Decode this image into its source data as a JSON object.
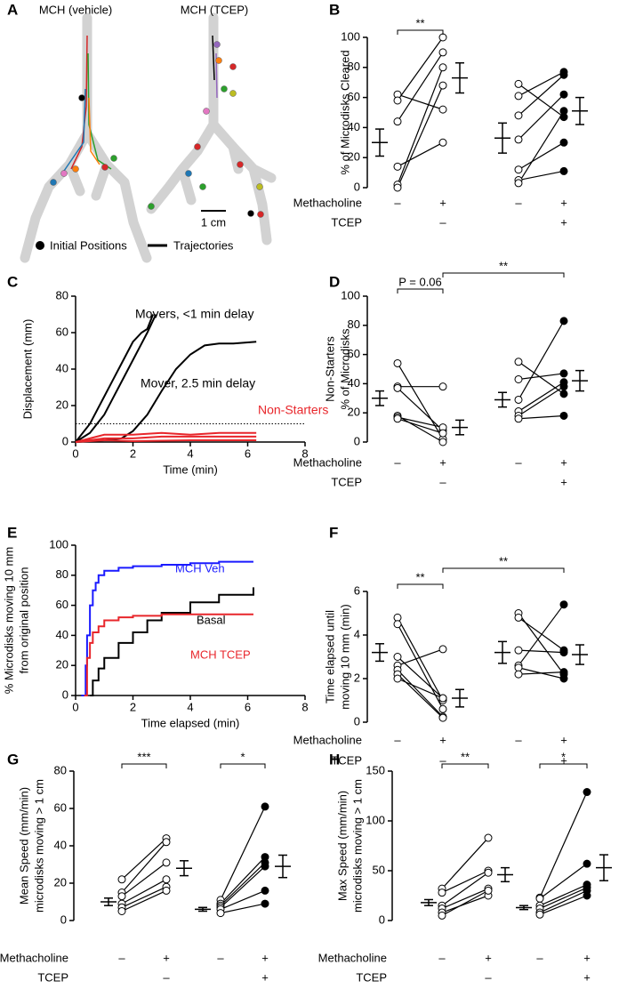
{
  "chart_data": [
    {
      "type": "diagram",
      "panel": "A",
      "titles": [
        "MCH (vehicle)",
        "MCH (TCEP)"
      ],
      "scale_label": "1 cm",
      "legend": [
        "Initial Positions",
        "Trajectories"
      ]
    },
    {
      "type": "paired",
      "panel": "B",
      "ylabel": [
        "% of Microdisks Cleared"
      ],
      "ylim": [
        0,
        100
      ],
      "yticks": [
        0,
        20,
        40,
        60,
        80,
        100
      ],
      "pairs": [
        {
          "before": [
            62,
            58,
            44,
            14,
            2,
            0
          ],
          "after": [
            52,
            100,
            90,
            30,
            80,
            68
          ],
          "before_fill": "white",
          "after_fill": "white"
        },
        {
          "before": [
            69,
            61,
            48,
            32,
            12,
            5,
            3
          ],
          "after": [
            47,
            77,
            75,
            62,
            30,
            11,
            51
          ],
          "before_fill": "white",
          "after_fill": "black"
        }
      ],
      "means": [
        {
          "mean": 30,
          "sem": 9
        },
        {
          "mean": 73,
          "sem": 10
        },
        {
          "mean": 33,
          "sem": 10
        },
        {
          "mean": 51,
          "sem": 9
        }
      ],
      "rows": [
        {
          "label": "Methacholine",
          "marks": [
            "–",
            "+",
            "–",
            "+"
          ]
        },
        {
          "label": "TCEP",
          "marks": [
            null,
            "–",
            null,
            "+"
          ]
        }
      ],
      "brackets": [
        {
          "from": 0,
          "to": 1,
          "label": "**"
        }
      ]
    },
    {
      "type": "line",
      "panel": "C",
      "xlabel": "Time (min)",
      "ylabel": "Displacement (mm)",
      "xlim": [
        0,
        8
      ],
      "xticks": [
        0,
        2,
        4,
        6,
        8
      ],
      "ylim": [
        0,
        80
      ],
      "yticks": [
        0,
        20,
        40,
        60,
        80
      ],
      "threshold": 10,
      "series": [
        {
          "color": "#000000",
          "x": [
            0,
            0.5,
            1,
            1.5,
            2,
            2.3,
            2.5,
            2.7
          ],
          "values": [
            0,
            10,
            25,
            40,
            55,
            60,
            62,
            70
          ]
        },
        {
          "color": "#000000",
          "x": [
            0,
            0.5,
            1,
            1.5,
            2,
            2.5,
            2.8
          ],
          "values": [
            0,
            5,
            15,
            30,
            45,
            60,
            70
          ]
        },
        {
          "color": "#000000",
          "x": [
            0,
            1,
            1.6,
            2,
            2.5,
            3,
            3.5,
            4,
            4.5,
            5,
            5.5,
            6.3
          ],
          "values": [
            0,
            1,
            2,
            6,
            15,
            28,
            40,
            48,
            53,
            54,
            54,
            55
          ]
        },
        {
          "color": "#e8262b",
          "x": [
            0,
            0.5,
            1,
            2,
            3,
            4,
            5,
            6.3
          ],
          "values": [
            0,
            2,
            4,
            4,
            5,
            4,
            5,
            5
          ]
        },
        {
          "color": "#e8262b",
          "x": [
            0,
            1,
            2,
            3,
            4,
            5,
            6.3
          ],
          "values": [
            0,
            2,
            2,
            3,
            3,
            3,
            3
          ]
        },
        {
          "color": "#e8262b",
          "x": [
            0,
            1,
            2,
            4,
            6.3
          ],
          "values": [
            0,
            1,
            0.5,
            1,
            1
          ]
        }
      ],
      "annotations": [
        {
          "text": "Movers, <1 min delay",
          "color": "#000000"
        },
        {
          "text": "Mover, 2.5 min delay",
          "color": "#000000"
        },
        {
          "text": "Non-Starters",
          "color": "#e8262b"
        }
      ]
    },
    {
      "type": "paired",
      "panel": "D",
      "ylabel": [
        "Non-Starters",
        "% of Microdisks"
      ],
      "ylim": [
        0,
        100
      ],
      "yticks": [
        0,
        20,
        40,
        60,
        80,
        100
      ],
      "pairs": [
        {
          "before": [
            54,
            38,
            37,
            18,
            17,
            16
          ],
          "after": [
            2,
            38,
            8,
            0,
            10,
            6
          ],
          "before_fill": "white",
          "after_fill": "white"
        },
        {
          "before": [
            55,
            43,
            29,
            21,
            18,
            16
          ],
          "after": [
            33,
            47,
            83,
            41,
            38,
            18
          ],
          "before_fill": "white",
          "after_fill": "black"
        }
      ],
      "means": [
        {
          "mean": 30,
          "sem": 5
        },
        {
          "mean": 10,
          "sem": 5
        },
        {
          "mean": 29,
          "sem": 5
        },
        {
          "mean": 42,
          "sem": 7
        }
      ],
      "rows": [
        {
          "label": "Methacholine",
          "marks": [
            "–",
            "+",
            "–",
            "+"
          ]
        },
        {
          "label": "TCEP",
          "marks": [
            null,
            "–",
            null,
            "+"
          ]
        }
      ],
      "brackets": [
        {
          "from": 0,
          "to": 1,
          "label": "P = 0.06"
        },
        {
          "from": 1,
          "to": 3,
          "label": "**"
        }
      ]
    },
    {
      "type": "step",
      "panel": "E",
      "xlabel": "Time elapsed (min)",
      "ylabel": [
        "% Microdisks moving 10 mm",
        "from original position"
      ],
      "xlim": [
        0,
        8
      ],
      "xticks": [
        0,
        2,
        4,
        6,
        8
      ],
      "ylim": [
        0,
        100
      ],
      "yticks": [
        0,
        20,
        40,
        60,
        80,
        100
      ],
      "series": [
        {
          "name": "MCH Veh",
          "color": "#1a1aff",
          "x": [
            0.2,
            0.35,
            0.4,
            0.5,
            0.6,
            0.7,
            0.8,
            1,
            1.5,
            2,
            3,
            4,
            5,
            6.2
          ],
          "values": [
            0,
            20,
            40,
            60,
            70,
            75,
            80,
            83,
            85,
            86,
            87,
            88,
            89,
            89
          ]
        },
        {
          "name": "Basal",
          "color": "#000000",
          "x": [
            0.5,
            0.6,
            0.8,
            1,
            1.5,
            2,
            2.5,
            3,
            4,
            5,
            6.2
          ],
          "values": [
            0,
            10,
            18,
            25,
            35,
            42,
            50,
            55,
            62,
            67,
            72
          ]
        },
        {
          "name": "MCH TCEP",
          "color": "#e8262b",
          "x": [
            0.3,
            0.4,
            0.5,
            0.6,
            0.8,
            1,
            1.5,
            2,
            3,
            6.2
          ],
          "values": [
            0,
            25,
            35,
            42,
            46,
            50,
            52,
            53,
            54,
            54
          ]
        }
      ]
    },
    {
      "type": "paired",
      "panel": "F",
      "ylabel": [
        "Time elapsed until",
        "moving 10 mm (min)"
      ],
      "ylim": [
        0,
        6
      ],
      "yticks": [
        0,
        2,
        4,
        6
      ],
      "pairs": [
        {
          "before": [
            4.8,
            4.5,
            3.0,
            2.6,
            2.4,
            2.2,
            2.0
          ],
          "after": [
            1.0,
            0.6,
            1.1,
            3.35,
            0.25,
            0.2,
            1.1
          ],
          "before_fill": "white",
          "after_fill": "white"
        },
        {
          "before": [
            5.0,
            4.8,
            3.3,
            2.6,
            2.5,
            2.2
          ],
          "after": [
            2.2,
            3.3,
            3.2,
            5.4,
            2.0,
            2.3
          ],
          "before_fill": "white",
          "after_fill": "black"
        }
      ],
      "means": [
        {
          "mean": 3.2,
          "sem": 0.4
        },
        {
          "mean": 1.1,
          "sem": 0.4
        },
        {
          "mean": 3.2,
          "sem": 0.5
        },
        {
          "mean": 3.1,
          "sem": 0.45
        }
      ],
      "rows": [
        {
          "label": "Methacholine",
          "marks": [
            "–",
            "+",
            "–",
            "+"
          ]
        },
        {
          "label": "TCEP",
          "marks": [
            null,
            "–",
            null,
            "+"
          ]
        }
      ],
      "brackets": [
        {
          "from": 0,
          "to": 1,
          "label": "**"
        },
        {
          "from": 1,
          "to": 3,
          "label": "**"
        }
      ]
    },
    {
      "type": "paired",
      "panel": "G",
      "ylabel": [
        "Mean Speed (mm/min)",
        "microdisks moving > 1 cm"
      ],
      "ylim": [
        0,
        80
      ],
      "yticks": [
        0,
        20,
        40,
        60,
        80
      ],
      "pairs": [
        {
          "before": [
            22,
            15,
            13,
            9,
            7,
            5
          ],
          "after": [
            44,
            42,
            31,
            22,
            18,
            16
          ],
          "before_fill": "white",
          "after_fill": "white"
        },
        {
          "before": [
            11,
            9,
            8,
            7,
            6,
            4
          ],
          "after": [
            61,
            34,
            31,
            29,
            16,
            9
          ],
          "before_fill": "white",
          "after_fill": "black"
        }
      ],
      "means": [
        {
          "mean": 10,
          "sem": 2
        },
        {
          "mean": 28,
          "sem": 4
        },
        {
          "mean": 6,
          "sem": 1
        },
        {
          "mean": 29,
          "sem": 6
        }
      ],
      "rows": [
        {
          "label": "Methacholine",
          "marks": [
            "–",
            "+",
            "–",
            "+"
          ]
        },
        {
          "label": "TCEP",
          "marks": [
            null,
            "–",
            null,
            "+"
          ]
        }
      ],
      "brackets": [
        {
          "from": 0,
          "to": 1,
          "label": "***"
        },
        {
          "from": 2,
          "to": 3,
          "label": "*"
        }
      ]
    },
    {
      "type": "paired",
      "panel": "H",
      "ylabel": [
        "Max Speed (mm/min)",
        "microdisks moving > 1 cm"
      ],
      "ylim": [
        0,
        150
      ],
      "yticks": [
        0,
        50,
        100,
        150
      ],
      "pairs": [
        {
          "before": [
            32,
            28,
            15,
            12,
            8,
            5
          ],
          "after": [
            83,
            50,
            48,
            32,
            25,
            30
          ],
          "before_fill": "white",
          "after_fill": "white"
        },
        {
          "before": [
            23,
            22,
            15,
            12,
            8,
            6
          ],
          "after": [
            129,
            57,
            36,
            33,
            30,
            25
          ],
          "before_fill": "white",
          "after_fill": "black"
        }
      ],
      "means": [
        {
          "mean": 18,
          "sem": 3
        },
        {
          "mean": 46,
          "sem": 7
        },
        {
          "mean": 13,
          "sem": 2
        },
        {
          "mean": 53,
          "sem": 13
        }
      ],
      "rows": [
        {
          "label": "Methacholine",
          "marks": [
            "–",
            "+",
            "–",
            "+"
          ]
        },
        {
          "label": "TCEP",
          "marks": [
            null,
            "–",
            null,
            "+"
          ]
        }
      ],
      "brackets": [
        {
          "from": 0,
          "to": 1,
          "label": "**"
        },
        {
          "from": 2,
          "to": 3,
          "label": "*"
        }
      ]
    }
  ]
}
